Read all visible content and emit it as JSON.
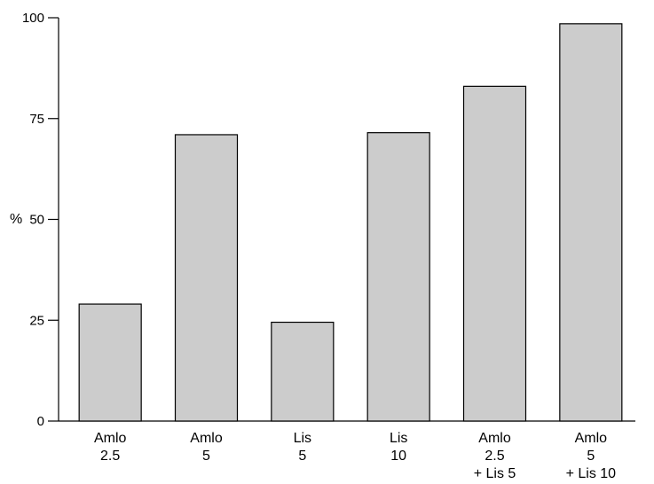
{
  "chart_data": {
    "type": "bar",
    "categories": [
      [
        "Amlo",
        "2.5"
      ],
      [
        "Amlo",
        "5"
      ],
      [
        "Lis",
        "5"
      ],
      [
        "Lis",
        "10"
      ],
      [
        "Amlo",
        "2.5",
        "+ Lis 5"
      ],
      [
        "Amlo",
        "5",
        "+ Lis 10"
      ]
    ],
    "values": [
      29,
      71,
      24.5,
      71.5,
      83,
      98.5
    ],
    "title": "",
    "xlabel": "",
    "ylabel": "%",
    "ylim": [
      0,
      100
    ],
    "yticks": [
      "0",
      "25",
      "50",
      "75",
      "100"
    ],
    "grid": false,
    "bar_color": "#cccccc",
    "edge_color": "#000000"
  }
}
